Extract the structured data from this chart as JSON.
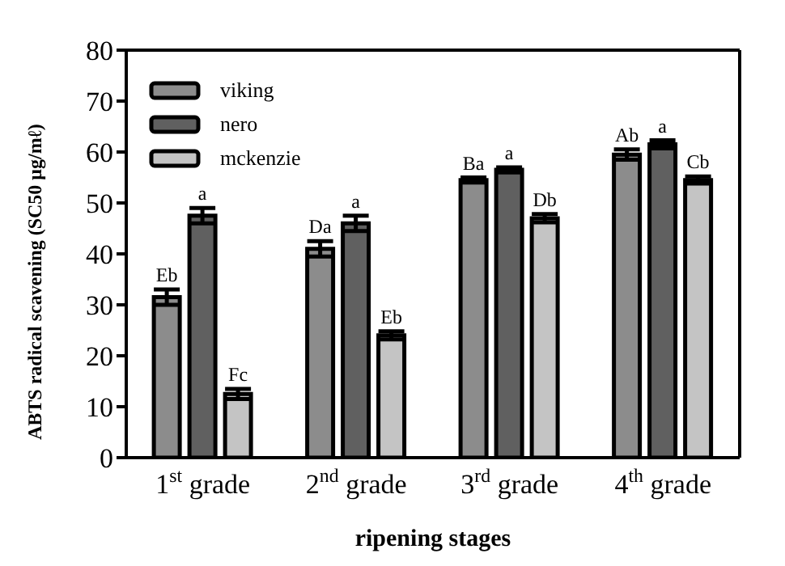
{
  "chart_data": {
    "type": "bar",
    "xlabel": "ripening stages",
    "ylabel": "ABTS radical scavening (SC50 μg/mℓ)",
    "categories": [
      "1$^{st}$ grade",
      "2$^{nd}$ grade",
      "3$^{rd}$ grade",
      "4$^{th}$ grade"
    ],
    "series": [
      {
        "name": "viking",
        "color": "#8c8c8c",
        "values": [
          31.5,
          41,
          54.5,
          59.5
        ],
        "errors": [
          1.5,
          1.5,
          0.5,
          1
        ],
        "value_labels": [
          "Eb",
          "Da",
          "Ba",
          "Ab"
        ]
      },
      {
        "name": "nero",
        "color": "#606060",
        "values": [
          47.5,
          46,
          56.5,
          61.5
        ],
        "errors": [
          1.5,
          1.5,
          0.5,
          0.8
        ],
        "value_labels": [
          "a",
          "a",
          "a",
          "a"
        ]
      },
      {
        "name": "mckenzie",
        "color": "#c4c4c4",
        "values": [
          12.5,
          24,
          47,
          54.5
        ],
        "errors": [
          1,
          0.8,
          0.8,
          0.7
        ],
        "value_labels": [
          "Fc",
          "Eb",
          "Db",
          "Cb"
        ]
      }
    ],
    "ylim": [
      0,
      80
    ],
    "yticks": [
      0,
      10,
      20,
      30,
      40,
      50,
      60,
      70,
      80
    ],
    "grid": false,
    "legend": "top left"
  }
}
